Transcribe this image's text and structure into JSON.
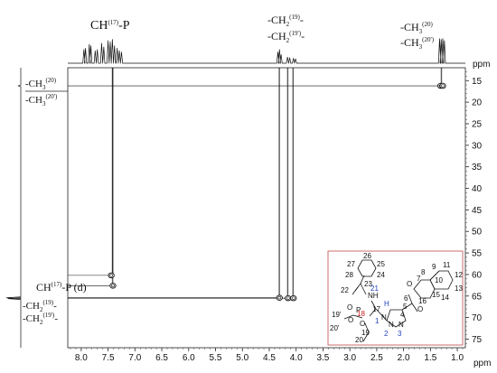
{
  "chart_data": {
    "type": "heatmap",
    "subtype": "2D NMR HSQC spectrum",
    "x_axis": {
      "unit_label": "ppm",
      "range": [
        8.25,
        0.85
      ],
      "reversed": true,
      "tick_labels": [
        "8.0",
        "7.5",
        "7.0",
        "6.5",
        "6.0",
        "5.5",
        "5.0",
        "4.5",
        "4.0",
        "3.5",
        "3.0",
        "2.5",
        "2.0",
        "1.5",
        "1.0"
      ]
    },
    "y_axis": {
      "unit_label": "ppm",
      "range": [
        12,
        77
      ],
      "reversed": true,
      "side": "right",
      "tick_labels": [
        "15",
        "20",
        "25",
        "30",
        "35",
        "40",
        "45",
        "50",
        "55",
        "60",
        "65",
        "70",
        "75"
      ]
    },
    "cross_peaks": [
      {
        "x": 1.31,
        "y": 16.2
      },
      {
        "x": 1.27,
        "y": 16.2
      },
      {
        "x": 7.44,
        "y": 60.2
      },
      {
        "x": 7.41,
        "y": 62.6
      },
      {
        "x": 4.31,
        "y": 65.4
      },
      {
        "x": 4.15,
        "y": 65.5
      },
      {
        "x": 4.05,
        "y": 65.5
      }
    ],
    "top_projection_peaks": [
      {
        "x": 7.95,
        "h": 0.55
      },
      {
        "x": 7.92,
        "h": 0.6
      },
      {
        "x": 7.85,
        "h": 0.75
      },
      {
        "x": 7.82,
        "h": 0.7
      },
      {
        "x": 7.74,
        "h": 0.5
      },
      {
        "x": 7.7,
        "h": 0.55
      },
      {
        "x": 7.62,
        "h": 0.8
      },
      {
        "x": 7.58,
        "h": 0.65
      },
      {
        "x": 7.5,
        "h": 0.9
      },
      {
        "x": 7.46,
        "h": 0.85
      },
      {
        "x": 7.42,
        "h": 0.95
      },
      {
        "x": 7.38,
        "h": 0.7
      },
      {
        "x": 7.33,
        "h": 0.6
      },
      {
        "x": 7.29,
        "h": 0.5
      },
      {
        "x": 7.25,
        "h": 0.45
      },
      {
        "x": 4.34,
        "h": 0.45
      },
      {
        "x": 4.31,
        "h": 0.55
      },
      {
        "x": 4.28,
        "h": 0.35
      },
      {
        "x": 4.16,
        "h": 0.25
      },
      {
        "x": 4.12,
        "h": 0.22
      },
      {
        "x": 4.05,
        "h": 0.2
      },
      {
        "x": 4.01,
        "h": 0.18
      },
      {
        "x": 1.33,
        "h": 0.98
      },
      {
        "x": 1.3,
        "h": 0.95
      },
      {
        "x": 1.27,
        "h": 0.98
      },
      {
        "x": 1.24,
        "h": 0.9
      }
    ],
    "left_projection_peaks": [
      {
        "y": 16.2,
        "h": 0.15
      },
      {
        "y": 65.4,
        "h": 0.9
      },
      {
        "y": 65.6,
        "h": 0.8
      }
    ],
    "assignment_lines": [
      {
        "from_x": 7.41,
        "from_y": 60.2,
        "label_ref": "ch17p_d"
      },
      {
        "from_x": 7.41,
        "from_y": 62.6
      },
      {
        "from_x": 4.31,
        "from_y": 65.4,
        "label_ref": "ch2"
      },
      {
        "from_x": 4.15,
        "from_y": 65.5
      },
      {
        "from_x": 4.05,
        "from_y": 65.5
      },
      {
        "from_x": 1.29,
        "from_y": 16.2,
        "label_ref": "ch3"
      }
    ],
    "annotations": {
      "top_ch17p": {
        "main": "CH",
        "sup": "(17)",
        "tail": "-P"
      },
      "top_ch2_a": {
        "pre": "-CH",
        "sub": "2",
        "sup": "(19)",
        "tail": "-"
      },
      "top_ch2_b": {
        "pre": "-CH",
        "sub": "2",
        "sup": "(19')",
        "tail": "-"
      },
      "top_ch3_a": {
        "pre": "-CH",
        "sub": "3",
        "sup": "(20)"
      },
      "top_ch3_b": {
        "pre": "-CH",
        "sub": "3",
        "sup": "(20')"
      },
      "left_ch3_a": {
        "pre": "-CH",
        "sub": "3",
        "sup": "(20)"
      },
      "left_ch3_b": {
        "pre": "-CH",
        "sub": "3",
        "sup": "(20')"
      },
      "left_ch17p": {
        "main": "CH",
        "sup": "(17)",
        "tail": "-P (d)"
      },
      "left_ch2_a": {
        "pre": "-CH",
        "sub": "2",
        "sup": "(19)",
        "tail": "-"
      },
      "left_ch2_b": {
        "pre": "-CH",
        "sub": "2",
        "sup": "(19')",
        "tail": "-"
      }
    },
    "structure_numbers": [
      "26",
      "27",
      "25",
      "28",
      "24",
      "23",
      "22",
      "21",
      "NH",
      "H",
      "17",
      "18",
      "5",
      "4",
      "P",
      "O",
      "O",
      "O",
      "N",
      "N",
      "N",
      "1",
      "2",
      "3",
      "19'",
      "19",
      "20'",
      "20",
      "O",
      "6",
      "O",
      "7",
      "8",
      "9",
      "10",
      "11",
      "12",
      "13",
      "14",
      "15",
      "16"
    ]
  }
}
